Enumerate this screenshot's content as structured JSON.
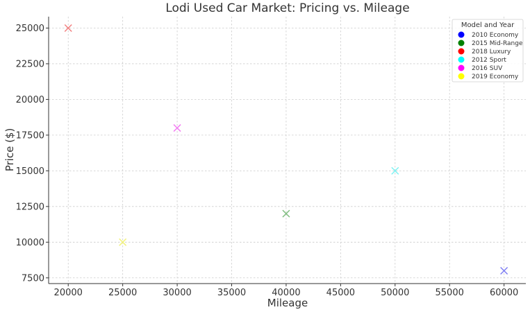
{
  "chart_data": {
    "type": "scatter",
    "title": "Lodi Used Car Market: Pricing vs. Mileage",
    "xlabel": "Mileage",
    "ylabel": "Price ($)",
    "xlim": [
      18200,
      62000
    ],
    "ylim": [
      7100,
      25800
    ],
    "x_ticks": [
      20000,
      25000,
      30000,
      35000,
      40000,
      45000,
      50000,
      55000,
      60000
    ],
    "y_ticks": [
      7500,
      10000,
      12500,
      15000,
      17500,
      20000,
      22500,
      25000
    ],
    "grid": true,
    "marker": "x",
    "legend": {
      "title": "Model and Year",
      "position": "top-right"
    },
    "series": [
      {
        "name": "2010 Economy",
        "legend_color": "#0000ff",
        "marker_color": "#7f7ff2",
        "points": [
          {
            "x": 60000,
            "y": 8000
          }
        ]
      },
      {
        "name": "2015 Mid-Range",
        "legend_color": "#008000",
        "marker_color": "#7fbd7f",
        "points": [
          {
            "x": 40000,
            "y": 12000
          }
        ]
      },
      {
        "name": "2018 Luxury",
        "legend_color": "#ff0000",
        "marker_color": "#f28080",
        "points": [
          {
            "x": 20000,
            "y": 25000
          }
        ]
      },
      {
        "name": "2012 Sport",
        "legend_color": "#00ffff",
        "marker_color": "#7ff2f2",
        "points": [
          {
            "x": 50000,
            "y": 15000
          }
        ]
      },
      {
        "name": "2016 SUV",
        "legend_color": "#ff00ff",
        "marker_color": "#f27ff2",
        "points": [
          {
            "x": 30000,
            "y": 18000
          }
        ]
      },
      {
        "name": "2019 Economy",
        "legend_color": "#ffff00",
        "marker_color": "#f2f27f",
        "points": [
          {
            "x": 25000,
            "y": 10000
          }
        ]
      }
    ]
  }
}
